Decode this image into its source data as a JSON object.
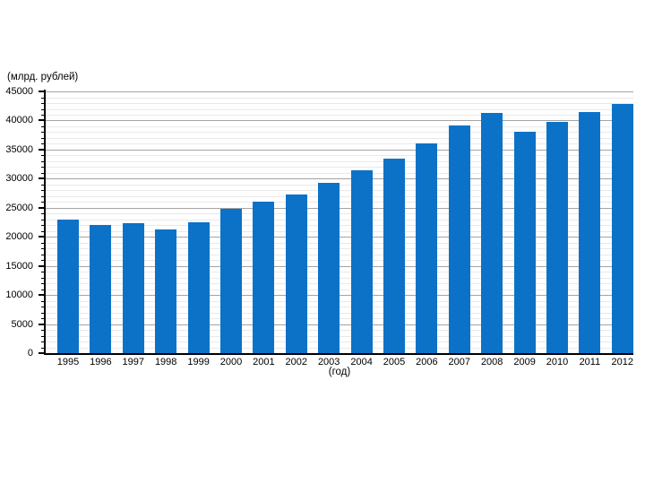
{
  "chart_data": {
    "type": "bar",
    "title": "",
    "ylabel": "(млрд. рублей)",
    "xlabel": "(год)",
    "categories": [
      "1995",
      "1996",
      "1997",
      "1998",
      "1999",
      "2000",
      "2001",
      "2002",
      "2003",
      "2004",
      "2005",
      "2006",
      "2007",
      "2008",
      "2009",
      "2010",
      "2011",
      "2012"
    ],
    "values": [
      22900,
      22100,
      22400,
      21200,
      22500,
      24800,
      26100,
      27300,
      29300,
      31400,
      33400,
      36100,
      39200,
      41300,
      38000,
      39800,
      41500,
      42900
    ],
    "ylim": [
      0,
      45000
    ],
    "ytick_step": 5000,
    "minor_tick_step": 1000,
    "ytick_labels": [
      "0",
      "5000",
      "10000",
      "15000",
      "20000",
      "25000",
      "30000",
      "35000",
      "40000",
      "45000"
    ],
    "grid": "on",
    "legend": "none",
    "bar_color": "#0b72c8",
    "axis_color": "#000000",
    "major_grid_color": "#a3a3a3",
    "minor_grid_color": "#e9e9e9",
    "background_color": "#ffffff"
  }
}
